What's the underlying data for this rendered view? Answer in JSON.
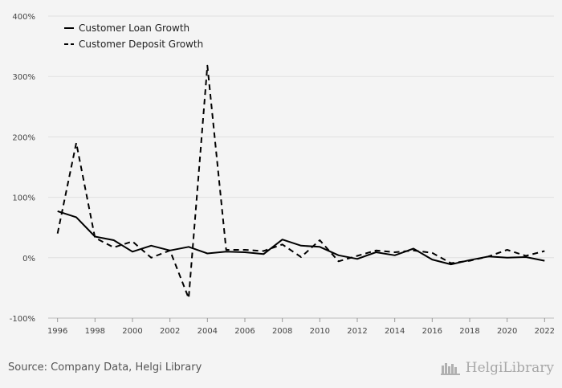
{
  "chart_data": {
    "type": "line",
    "title": "",
    "xlabel": "",
    "ylabel": "",
    "x": [
      1996,
      1997,
      1998,
      1999,
      2000,
      2001,
      2002,
      2003,
      2004,
      2005,
      2006,
      2007,
      2008,
      2009,
      2010,
      2011,
      2012,
      2013,
      2014,
      2015,
      2016,
      2017,
      2018,
      2019,
      2020,
      2021,
      2022
    ],
    "xticks": [
      "1996",
      "1998",
      "2000",
      "2002",
      "2004",
      "2006",
      "2008",
      "2010",
      "2012",
      "2014",
      "2016",
      "2018",
      "2020",
      "2022"
    ],
    "yticks": [
      "-100%",
      "0%",
      "100%",
      "200%",
      "300%",
      "400%"
    ],
    "ylim": [
      -100,
      400
    ],
    "grid": true,
    "legend_position": "top-left",
    "series": [
      {
        "name": "Customer Loan Growth",
        "style": "solid",
        "color": "#000000",
        "values": [
          77,
          67,
          35,
          29,
          10,
          20,
          12,
          18,
          7,
          10,
          9,
          6,
          30,
          20,
          18,
          4,
          -2,
          9,
          4,
          15,
          -3,
          -11,
          -4,
          2,
          0,
          1,
          -5
        ]
      },
      {
        "name": "Customer Deposit Growth",
        "style": "dashed",
        "color": "#000000",
        "values": [
          40,
          190,
          33,
          17,
          27,
          0,
          12,
          -67,
          318,
          13,
          13,
          11,
          22,
          1,
          29,
          -6,
          3,
          12,
          9,
          12,
          8,
          -9,
          -5,
          2,
          13,
          3,
          11
        ]
      }
    ]
  },
  "footer": {
    "source": "Source: Company Data, Helgi Library",
    "logo_text": "HelgiLibrary"
  }
}
